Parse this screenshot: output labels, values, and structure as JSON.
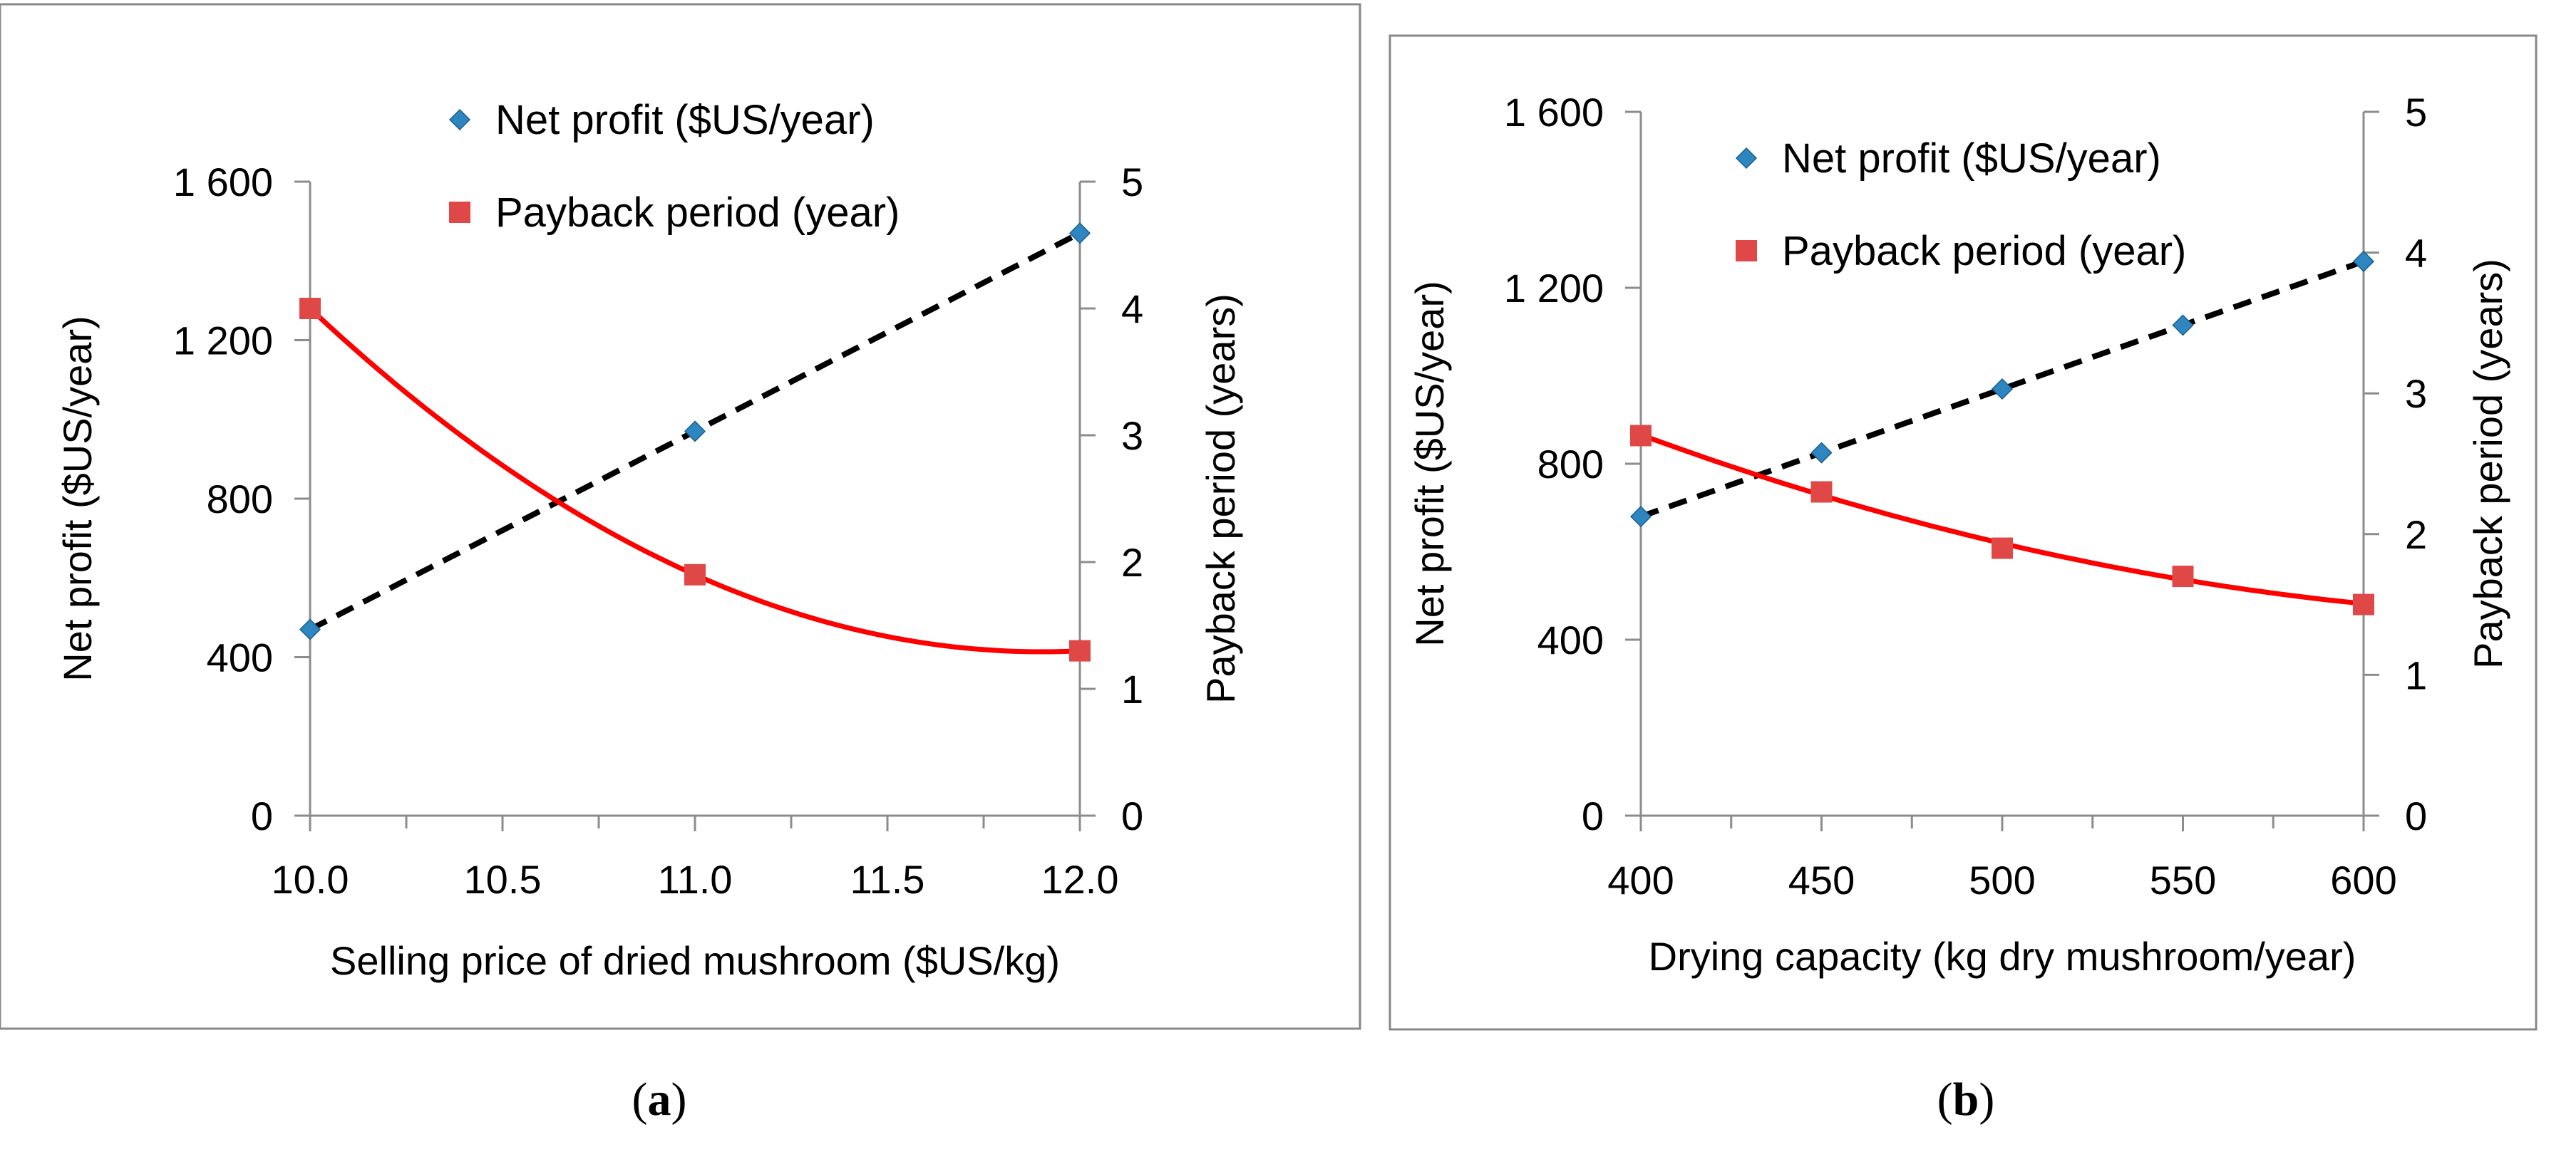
{
  "chart_data": [
    {
      "type": "line",
      "panel_label": "a",
      "title": "",
      "xlabel": "Selling price of dried mushroom ($US/kg)",
      "ylabel": "Net profit ($US/year)",
      "y2label": "Payback period (years)",
      "xlim": [
        10.0,
        12.0
      ],
      "x_ticks": [
        "10.0",
        "10.5",
        "11.0",
        "11.5",
        "12.0"
      ],
      "ylim": [
        0,
        1600
      ],
      "y_ticks": [
        "0",
        "400",
        "800",
        "1 200",
        "1 600"
      ],
      "y2lim": [
        0,
        5
      ],
      "y2_ticks": [
        "0",
        "1",
        "2",
        "3",
        "4",
        "5"
      ],
      "legend_position": "top-center",
      "series": [
        {
          "name": "Net profit ($US/year)",
          "axis": "left",
          "marker": "diamond",
          "color": "#2e86c1",
          "line": "dashed",
          "line_color": "#000000",
          "x": [
            10.0,
            11.0,
            12.0
          ],
          "values": [
            470,
            970,
            1470
          ]
        },
        {
          "name": "Payback period (year)",
          "axis": "right",
          "marker": "square",
          "color": "#e04848",
          "line": "solid-trend",
          "line_color": "#ff0000",
          "x": [
            10.0,
            11.0,
            12.0
          ],
          "values": [
            4.0,
            1.9,
            1.3
          ]
        }
      ]
    },
    {
      "type": "line",
      "panel_label": "b",
      "title": "",
      "xlabel": "Drying capacity (kg dry mushroom/year)",
      "ylabel": "Net profit ($US/year)",
      "y2label": "Payback period (years)",
      "xlim": [
        400,
        600
      ],
      "x_ticks": [
        "400",
        "450",
        "500",
        "550",
        "600"
      ],
      "ylim": [
        0,
        1600
      ],
      "y_ticks": [
        "0",
        "400",
        "800",
        "1 200",
        "1 600"
      ],
      "y2lim": [
        0,
        5
      ],
      "y2_ticks": [
        "0",
        "1",
        "2",
        "3",
        "4",
        "5"
      ],
      "legend_position": "top-center",
      "series": [
        {
          "name": "Net profit ($US/year)",
          "axis": "left",
          "marker": "diamond",
          "color": "#2e86c1",
          "line": "dashed",
          "line_color": "#000000",
          "x": [
            400,
            450,
            500,
            550,
            600
          ],
          "values": [
            680,
            825,
            970,
            1115,
            1260
          ]
        },
        {
          "name": "Payback period (year)",
          "axis": "right",
          "marker": "square",
          "color": "#e04848",
          "line": "solid-trend",
          "line_color": "#ff0000",
          "x": [
            400,
            450,
            500,
            550,
            600
          ],
          "values": [
            2.7,
            2.3,
            1.9,
            1.7,
            1.5
          ]
        }
      ]
    }
  ]
}
